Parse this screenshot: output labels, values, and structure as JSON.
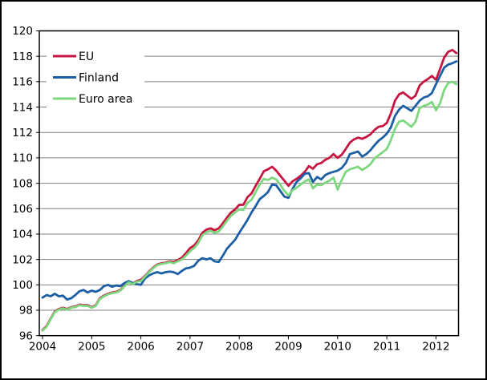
{
  "chart_data": {
    "type": "line",
    "x_start_year": 2004,
    "frequency": "monthly",
    "x_tick_labels": [
      "2004",
      "2005",
      "2006",
      "2007",
      "2008",
      "2009",
      "2010",
      "2011",
      "2012"
    ],
    "y_tick_labels": [
      "96",
      "98",
      "100",
      "102",
      "104",
      "106",
      "108",
      "110",
      "112",
      "114",
      "116",
      "118",
      "120"
    ],
    "y_ticks": [
      96,
      98,
      100,
      102,
      104,
      106,
      108,
      110,
      112,
      114,
      116,
      118,
      120
    ],
    "ylim": [
      96,
      120
    ],
    "grid": true,
    "legend_position": "top-left",
    "axis_color": "#000000",
    "gridline_color": "#7f7f7f",
    "background_color": "#ffffff",
    "series": [
      {
        "name": "EU",
        "color": "#c81440",
        "values": [
          96.45,
          96.75,
          97.35,
          97.9,
          98.1,
          98.2,
          98.1,
          98.25,
          98.3,
          98.45,
          98.4,
          98.4,
          98.25,
          98.4,
          98.95,
          99.15,
          99.3,
          99.4,
          99.45,
          99.6,
          99.95,
          100.25,
          100.1,
          100.3,
          100.4,
          100.7,
          101.05,
          101.35,
          101.6,
          101.7,
          101.75,
          101.85,
          101.8,
          101.95,
          102.15,
          102.5,
          102.9,
          103.1,
          103.5,
          104.1,
          104.35,
          104.45,
          104.3,
          104.45,
          104.85,
          105.3,
          105.7,
          105.95,
          106.3,
          106.3,
          106.9,
          107.2,
          107.8,
          108.35,
          108.95,
          109.1,
          109.3,
          109.0,
          108.6,
          108.2,
          107.8,
          108.15,
          108.35,
          108.6,
          108.9,
          109.35,
          109.15,
          109.5,
          109.6,
          109.85,
          110.0,
          110.3,
          110.0,
          110.25,
          110.7,
          111.2,
          111.45,
          111.6,
          111.5,
          111.65,
          111.85,
          112.2,
          112.45,
          112.5,
          112.75,
          113.5,
          114.5,
          115.0,
          115.15,
          114.9,
          114.65,
          114.9,
          115.7,
          116.0,
          116.2,
          116.45,
          116.15,
          117.0,
          117.9,
          118.35,
          118.5,
          118.25
        ]
      },
      {
        "name": "Finland",
        "color": "#1c5fa5",
        "values": [
          99.0,
          99.2,
          99.1,
          99.3,
          99.1,
          99.15,
          98.85,
          98.95,
          99.2,
          99.5,
          99.6,
          99.4,
          99.55,
          99.45,
          99.6,
          99.9,
          100.0,
          99.85,
          99.95,
          99.9,
          100.15,
          100.3,
          100.15,
          100.05,
          100.0,
          100.5,
          100.75,
          100.9,
          101.0,
          100.9,
          101.0,
          101.05,
          101.0,
          100.85,
          101.1,
          101.3,
          101.35,
          101.5,
          101.9,
          102.1,
          102.0,
          102.1,
          101.85,
          101.8,
          102.3,
          102.85,
          103.2,
          103.55,
          104.1,
          104.6,
          105.1,
          105.7,
          106.2,
          106.75,
          107.0,
          107.3,
          107.9,
          107.85,
          107.4,
          106.95,
          106.85,
          107.55,
          108.1,
          108.4,
          108.75,
          108.8,
          108.1,
          108.5,
          108.3,
          108.65,
          108.8,
          108.9,
          109.0,
          109.2,
          109.6,
          110.3,
          110.4,
          110.5,
          110.1,
          110.3,
          110.6,
          111.0,
          111.35,
          111.6,
          111.9,
          112.4,
          113.3,
          113.8,
          114.1,
          113.9,
          113.7,
          114.1,
          114.5,
          114.75,
          114.85,
          115.1,
          115.8,
          116.45,
          117.1,
          117.35,
          117.45,
          117.6
        ]
      },
      {
        "name": "Euro area",
        "color": "#7ed77e",
        "values": [
          96.4,
          96.7,
          97.3,
          97.85,
          98.05,
          98.15,
          98.05,
          98.2,
          98.25,
          98.4,
          98.35,
          98.35,
          98.2,
          98.35,
          98.9,
          99.1,
          99.25,
          99.35,
          99.4,
          99.55,
          99.9,
          100.2,
          100.05,
          100.25,
          100.3,
          100.65,
          101.0,
          101.3,
          101.55,
          101.65,
          101.7,
          101.8,
          101.7,
          101.85,
          102.0,
          102.3,
          102.65,
          102.9,
          103.3,
          103.9,
          104.15,
          104.25,
          104.1,
          104.2,
          104.6,
          105.05,
          105.45,
          105.7,
          105.95,
          105.9,
          106.45,
          106.7,
          107.3,
          107.9,
          108.35,
          108.25,
          108.45,
          108.3,
          107.9,
          107.4,
          107.05,
          107.45,
          107.65,
          107.9,
          108.15,
          108.3,
          107.6,
          107.9,
          107.85,
          108.05,
          108.2,
          108.45,
          107.5,
          108.25,
          108.9,
          109.1,
          109.2,
          109.3,
          109.05,
          109.25,
          109.5,
          109.95,
          110.2,
          110.45,
          110.7,
          111.4,
          112.3,
          112.85,
          112.95,
          112.7,
          112.45,
          112.85,
          113.9,
          114.1,
          114.2,
          114.4,
          113.75,
          114.3,
          115.35,
          115.9,
          116.0,
          115.8
        ]
      }
    ],
    "legend": [
      {
        "label": "EU",
        "color": "#c81440"
      },
      {
        "label": "Finland",
        "color": "#1c5fa5"
      },
      {
        "label": "Euro area",
        "color": "#7ed77e"
      }
    ]
  }
}
